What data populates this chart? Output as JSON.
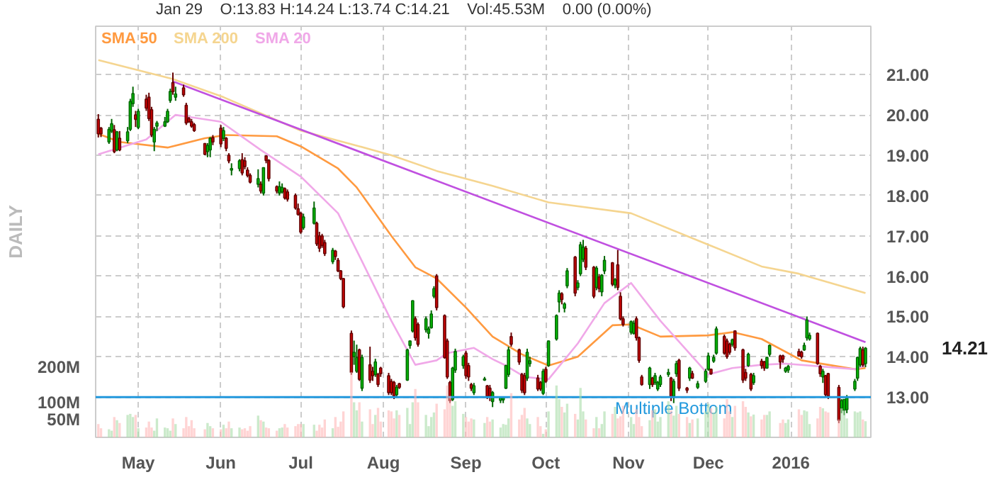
{
  "chart_data": {
    "type": "candlestick",
    "annotations": [
      "DAILY",
      "Jan 29",
      "O:13.83  H:14.24  L:13.74  C:14.21",
      "Vol:45.53M",
      "0.00 (0.00%)",
      "14.21"
    ],
    "x": [
      "2015-04-16",
      "2015-04-17",
      "2015-04-20",
      "2015-04-21",
      "2015-04-22",
      "2015-04-23",
      "2015-04-24",
      "2015-04-27",
      "2015-04-28",
      "2015-04-29",
      "2015-04-30",
      "2015-05-01",
      "2015-05-04",
      "2015-05-05",
      "2015-05-06",
      "2015-05-07",
      "2015-05-08",
      "2015-05-11",
      "2015-05-12",
      "2015-05-13",
      "2015-05-14",
      "2015-05-15",
      "2015-05-18",
      "2015-05-19",
      "2015-05-20",
      "2015-05-21",
      "2015-05-22",
      "2015-05-26",
      "2015-05-27",
      "2015-05-28",
      "2015-05-29",
      "2015-06-01",
      "2015-06-02",
      "2015-06-03",
      "2015-06-04",
      "2015-06-05",
      "2015-06-08",
      "2015-06-09",
      "2015-06-10",
      "2015-06-11",
      "2015-06-12",
      "2015-06-15",
      "2015-06-16",
      "2015-06-17",
      "2015-06-18",
      "2015-06-19",
      "2015-06-22",
      "2015-06-23",
      "2015-06-24",
      "2015-06-25",
      "2015-06-26",
      "2015-06-29",
      "2015-06-30",
      "2015-07-01",
      "2015-07-02",
      "2015-07-06",
      "2015-07-07",
      "2015-07-08",
      "2015-07-09",
      "2015-07-10",
      "2015-07-13",
      "2015-07-14",
      "2015-07-15",
      "2015-07-16",
      "2015-07-17",
      "2015-07-20",
      "2015-07-21",
      "2015-07-22",
      "2015-07-23",
      "2015-07-24",
      "2015-07-27",
      "2015-07-28",
      "2015-07-29",
      "2015-07-30",
      "2015-07-31",
      "2015-08-03",
      "2015-08-04",
      "2015-08-05",
      "2015-08-06",
      "2015-08-07",
      "2015-08-10",
      "2015-08-11",
      "2015-08-12",
      "2015-08-13",
      "2015-08-14",
      "2015-08-17",
      "2015-08-18",
      "2015-08-19",
      "2015-08-20",
      "2015-08-21",
      "2015-08-24",
      "2015-08-25",
      "2015-08-26",
      "2015-08-27",
      "2015-08-28",
      "2015-08-31",
      "2015-09-01",
      "2015-09-02",
      "2015-09-03",
      "2015-09-04",
      "2015-09-08",
      "2015-09-09",
      "2015-09-10",
      "2015-09-11",
      "2015-09-14",
      "2015-09-15",
      "2015-09-16",
      "2015-09-17",
      "2015-09-18",
      "2015-09-21",
      "2015-09-22",
      "2015-09-23",
      "2015-09-24",
      "2015-09-25",
      "2015-09-28",
      "2015-09-29",
      "2015-09-30",
      "2015-10-01",
      "2015-10-02",
      "2015-10-05",
      "2015-10-06",
      "2015-10-07",
      "2015-10-08",
      "2015-10-09",
      "2015-10-12",
      "2015-10-13",
      "2015-10-14",
      "2015-10-15",
      "2015-10-16",
      "2015-10-19",
      "2015-10-20",
      "2015-10-21",
      "2015-10-22",
      "2015-10-23",
      "2015-10-26",
      "2015-10-27",
      "2015-10-28",
      "2015-10-29",
      "2015-10-30",
      "2015-11-02",
      "2015-11-03",
      "2015-11-04",
      "2015-11-05",
      "2015-11-06",
      "2015-11-09",
      "2015-11-10",
      "2015-11-11",
      "2015-11-12",
      "2015-11-13",
      "2015-11-16",
      "2015-11-17",
      "2015-11-18",
      "2015-11-19",
      "2015-11-20",
      "2015-11-23",
      "2015-11-24",
      "2015-11-25",
      "2015-11-27",
      "2015-11-30",
      "2015-12-01",
      "2015-12-02",
      "2015-12-03",
      "2015-12-04",
      "2015-12-07",
      "2015-12-08",
      "2015-12-09",
      "2015-12-10",
      "2015-12-11",
      "2015-12-14",
      "2015-12-15",
      "2015-12-16",
      "2015-12-17",
      "2015-12-18",
      "2015-12-21",
      "2015-12-22",
      "2015-12-23",
      "2015-12-24",
      "2015-12-28",
      "2015-12-29",
      "2015-12-30",
      "2015-12-31",
      "2016-01-04",
      "2016-01-05",
      "2016-01-06",
      "2016-01-07",
      "2016-01-08",
      "2016-01-11",
      "2016-01-12",
      "2016-01-13",
      "2016-01-14",
      "2016-01-15",
      "2016-01-19",
      "2016-01-20",
      "2016-01-21",
      "2016-01-22",
      "2016-01-25",
      "2016-01-26",
      "2016-01-27",
      "2016-01-28",
      "2016-01-29"
    ],
    "ohlc": [
      [
        19.89,
        20.02,
        19.44,
        19.53
      ],
      [
        19.67,
        19.7,
        19.45,
        19.53
      ],
      [
        19.33,
        19.7,
        19.28,
        19.64
      ],
      [
        19.6,
        19.9,
        19.55,
        19.78
      ],
      [
        19.63,
        19.75,
        19.05,
        19.09
      ],
      [
        19.13,
        19.6,
        19.1,
        19.58
      ],
      [
        19.42,
        19.6,
        19.1,
        19.13
      ],
      [
        19.36,
        19.7,
        19.3,
        19.58
      ],
      [
        19.64,
        20.4,
        19.6,
        20.33
      ],
      [
        20.28,
        20.7,
        20.2,
        20.53
      ],
      [
        20.0,
        20.1,
        19.7,
        19.89
      ],
      [
        19.69,
        20.15,
        19.65,
        20.09
      ],
      [
        20.39,
        20.5,
        20.1,
        20.17
      ],
      [
        20.44,
        20.55,
        19.85,
        19.91
      ],
      [
        20.13,
        20.2,
        19.45,
        19.5
      ],
      [
        19.33,
        19.7,
        19.1,
        19.64
      ],
      [
        19.72,
        19.85,
        19.6,
        19.8
      ],
      [
        19.72,
        19.95,
        19.7,
        19.83
      ],
      [
        19.83,
        20.15,
        19.8,
        20.09
      ],
      [
        20.36,
        20.65,
        20.3,
        20.58
      ],
      [
        20.8,
        21.05,
        20.5,
        20.58
      ],
      [
        20.44,
        20.7,
        20.35,
        20.52
      ],
      [
        20.67,
        20.75,
        20.45,
        20.5
      ],
      [
        20.24,
        20.3,
        19.75,
        19.8
      ],
      [
        19.91,
        19.95,
        19.8,
        19.83
      ],
      [
        19.83,
        19.9,
        19.68,
        19.72
      ],
      [
        19.76,
        19.8,
        19.58,
        19.61
      ],
      [
        19.29,
        19.3,
        19.0,
        19.02
      ],
      [
        19.09,
        19.3,
        18.95,
        19.24
      ],
      [
        19.13,
        19.45,
        18.95,
        19.42
      ],
      [
        19.44,
        19.5,
        19.25,
        19.33
      ],
      [
        19.67,
        19.75,
        19.2,
        19.28
      ],
      [
        19.42,
        19.7,
        19.35,
        19.61
      ],
      [
        19.42,
        19.45,
        19.1,
        19.17
      ],
      [
        19.0,
        19.05,
        18.8,
        18.86
      ],
      [
        18.63,
        18.8,
        18.5,
        18.67
      ],
      [
        18.67,
        18.9,
        18.6,
        18.86
      ],
      [
        18.89,
        19.05,
        18.5,
        18.56
      ],
      [
        18.86,
        18.95,
        18.65,
        18.72
      ],
      [
        18.63,
        18.7,
        18.45,
        18.5
      ],
      [
        18.5,
        18.55,
        18.3,
        18.33
      ],
      [
        18.28,
        18.65,
        18.2,
        18.42
      ],
      [
        18.28,
        18.35,
        18.05,
        18.11
      ],
      [
        18.06,
        18.7,
        18.0,
        18.69
      ],
      [
        18.98,
        19.0,
        18.8,
        18.87
      ],
      [
        18.87,
        18.9,
        18.35,
        18.42
      ],
      [
        18.22,
        18.25,
        18.05,
        18.11
      ],
      [
        18.06,
        18.35,
        18.0,
        18.22
      ],
      [
        18.09,
        18.3,
        18.05,
        18.2
      ],
      [
        18.17,
        18.2,
        17.9,
        17.94
      ],
      [
        18.09,
        18.15,
        17.85,
        17.91
      ],
      [
        18.0,
        18.05,
        17.65,
        17.69
      ],
      [
        17.67,
        17.8,
        17.5,
        17.53
      ],
      [
        17.56,
        17.6,
        17.05,
        17.09
      ],
      [
        17.2,
        17.55,
        17.15,
        17.47
      ],
      [
        17.31,
        17.85,
        17.28,
        17.69
      ],
      [
        17.31,
        17.35,
        16.75,
        16.8
      ],
      [
        17.0,
        17.1,
        16.6,
        16.69
      ],
      [
        17.0,
        17.05,
        16.7,
        16.76
      ],
      [
        16.83,
        16.9,
        16.5,
        16.56
      ],
      [
        16.36,
        16.7,
        16.3,
        16.64
      ],
      [
        16.62,
        16.65,
        16.4,
        16.49
      ],
      [
        16.39,
        16.45,
        16.1,
        16.13
      ],
      [
        16.13,
        16.15,
        15.9,
        15.94
      ],
      [
        15.94,
        15.95,
        15.2,
        15.24
      ],
      [
        14.58,
        14.65,
        13.55,
        13.61
      ],
      [
        14.0,
        14.4,
        13.8,
        14.11
      ],
      [
        13.64,
        14.3,
        13.6,
        13.98
      ],
      [
        14.17,
        14.2,
        13.4,
        13.44
      ],
      [
        13.22,
        14.05,
        13.15,
        13.98
      ],
      [
        13.8,
        14.25,
        13.35,
        13.42
      ],
      [
        13.64,
        13.75,
        13.4,
        13.53
      ],
      [
        13.56,
        13.95,
        13.5,
        13.87
      ],
      [
        13.56,
        13.6,
        13.25,
        13.31
      ],
      [
        13.72,
        13.75,
        13.5,
        13.58
      ],
      [
        13.53,
        13.6,
        13.05,
        13.11
      ],
      [
        13.39,
        13.45,
        13.05,
        13.11
      ],
      [
        13.36,
        13.4,
        12.95,
        13.02
      ],
      [
        13.06,
        13.3,
        13.0,
        13.24
      ],
      [
        13.33,
        13.35,
        13.2,
        13.24
      ],
      [
        13.42,
        14.2,
        13.4,
        14.17
      ],
      [
        14.28,
        14.4,
        14.2,
        14.39
      ],
      [
        14.64,
        15.4,
        14.6,
        15.39
      ],
      [
        14.94,
        15.0,
        14.4,
        14.47
      ],
      [
        14.8,
        14.85,
        14.25,
        14.31
      ],
      [
        14.67,
        15.0,
        14.6,
        14.94
      ],
      [
        14.58,
        14.75,
        14.45,
        14.69
      ],
      [
        14.72,
        15.15,
        14.7,
        15.06
      ],
      [
        15.5,
        15.75,
        15.45,
        15.69
      ],
      [
        16.0,
        16.05,
        15.15,
        15.22
      ],
      [
        15.02,
        15.05,
        13.95,
        13.98
      ],
      [
        14.39,
        14.45,
        13.45,
        13.5
      ],
      [
        13.36,
        13.4,
        12.85,
        12.91
      ],
      [
        12.94,
        13.75,
        12.9,
        13.72
      ],
      [
        13.67,
        14.2,
        13.6,
        14.13
      ],
      [
        13.78,
        14.05,
        13.7,
        14.0
      ],
      [
        14.09,
        14.15,
        13.45,
        13.53
      ],
      [
        13.78,
        13.85,
        13.4,
        13.5
      ],
      [
        13.31,
        13.35,
        13.15,
        13.22
      ],
      [
        13.11,
        13.35,
        13.05,
        13.28
      ],
      [
        13.42,
        13.5,
        13.4,
        13.45
      ],
      [
        13.28,
        13.3,
        12.95,
        13.02
      ],
      [
        13.22,
        13.3,
        12.9,
        13.02
      ],
      [
        12.89,
        13.15,
        12.75,
        13.11
      ],
      [
        12.92,
        13.0,
        12.85,
        12.98
      ],
      [
        12.93,
        13.0,
        12.85,
        12.98
      ],
      [
        13.22,
        13.8,
        13.2,
        13.78
      ],
      [
        13.56,
        14.25,
        13.5,
        14.17
      ],
      [
        14.5,
        14.6,
        14.25,
        14.31
      ],
      [
        14.17,
        14.2,
        13.8,
        13.87
      ],
      [
        13.56,
        13.6,
        13.1,
        13.17
      ],
      [
        13.53,
        13.6,
        13.05,
        13.11
      ],
      [
        13.47,
        14.2,
        13.4,
        14.11
      ],
      [
        13.83,
        14.0,
        13.75,
        13.9
      ],
      [
        13.47,
        13.55,
        13.15,
        13.2
      ],
      [
        13.36,
        13.4,
        13.15,
        13.2
      ],
      [
        13.09,
        13.7,
        13.05,
        13.64
      ],
      [
        13.69,
        13.75,
        13.35,
        13.39
      ],
      [
        13.78,
        14.4,
        13.75,
        14.39
      ],
      [
        14.44,
        15.05,
        14.4,
        15.02
      ],
      [
        15.36,
        15.65,
        15.1,
        15.58
      ],
      [
        15.56,
        15.6,
        15.3,
        15.42
      ],
      [
        15.2,
        15.35,
        15.1,
        15.31
      ],
      [
        15.76,
        16.2,
        15.7,
        16.13
      ],
      [
        16.47,
        16.5,
        15.5,
        15.58
      ],
      [
        15.72,
        15.9,
        15.65,
        15.83
      ],
      [
        16.06,
        16.85,
        16.0,
        16.78
      ],
      [
        16.42,
        16.9,
        16.35,
        16.72
      ],
      [
        16.69,
        16.75,
        16.15,
        16.22
      ],
      [
        16.22,
        16.25,
        15.45,
        15.5
      ],
      [
        15.72,
        16.25,
        15.65,
        16.2
      ],
      [
        15.98,
        16.05,
        15.6,
        15.69
      ],
      [
        15.61,
        16.05,
        15.5,
        16.02
      ],
      [
        16.13,
        16.5,
        16.05,
        16.39
      ],
      [
        16.33,
        16.35,
        15.75,
        15.8
      ],
      [
        15.78,
        15.95,
        15.7,
        15.91
      ],
      [
        16.28,
        16.65,
        15.65,
        15.72
      ],
      [
        15.5,
        15.6,
        14.9,
        14.94
      ],
      [
        14.94,
        15.0,
        14.75,
        14.8
      ],
      [
        14.61,
        14.9,
        14.55,
        14.87
      ],
      [
        14.58,
        14.9,
        14.55,
        14.83
      ],
      [
        14.94,
        15.0,
        14.4,
        14.47
      ],
      [
        14.47,
        14.5,
        13.85,
        13.91
      ],
      [
        13.5,
        13.55,
        13.28,
        13.31
      ],
      [
        13.31,
        13.75,
        13.2,
        13.72
      ],
      [
        13.47,
        13.5,
        13.25,
        13.31
      ],
      [
        13.36,
        13.6,
        13.3,
        13.53
      ],
      [
        13.2,
        13.4,
        13.15,
        13.36
      ],
      [
        13.31,
        13.55,
        13.25,
        13.5
      ],
      [
        13.56,
        13.7,
        13.5,
        13.61
      ],
      [
        13.47,
        13.5,
        12.9,
        13.0
      ],
      [
        13.02,
        13.45,
        12.85,
        13.39
      ],
      [
        13.58,
        13.9,
        13.5,
        13.83
      ],
      [
        13.91,
        13.95,
        13.15,
        13.22
      ],
      [
        13.22,
        13.25,
        13.1,
        13.17
      ],
      [
        13.47,
        13.75,
        13.4,
        13.72
      ],
      [
        13.58,
        13.65,
        13.45,
        13.47
      ],
      [
        13.24,
        13.4,
        13.2,
        13.33
      ],
      [
        13.39,
        13.7,
        13.35,
        13.64
      ],
      [
        13.69,
        14.1,
        13.65,
        14.02
      ],
      [
        13.69,
        13.7,
        13.55,
        13.58
      ],
      [
        13.89,
        14.05,
        13.85,
        13.98
      ],
      [
        14.09,
        14.75,
        14.05,
        14.69
      ],
      [
        14.5,
        14.55,
        14.05,
        14.09
      ],
      [
        14.39,
        14.45,
        13.95,
        14.0
      ],
      [
        14.31,
        14.35,
        14.05,
        14.11
      ],
      [
        14.31,
        14.45,
        14.25,
        14.42
      ],
      [
        14.64,
        14.65,
        14.15,
        14.22
      ],
      [
        14.17,
        14.2,
        13.35,
        13.42
      ],
      [
        13.61,
        13.7,
        13.4,
        13.47
      ],
      [
        13.78,
        14.1,
        13.75,
        14.06
      ],
      [
        13.56,
        13.6,
        13.15,
        13.2
      ],
      [
        13.36,
        13.6,
        13.3,
        13.53
      ],
      [
        13.89,
        13.95,
        13.7,
        13.78
      ],
      [
        13.87,
        13.9,
        13.65,
        13.72
      ],
      [
        13.72,
        14.0,
        13.7,
        13.98
      ],
      [
        14.06,
        14.3,
        14.0,
        14.28
      ],
      [
        14.02,
        14.05,
        13.7,
        13.87
      ],
      [
        14.02,
        14.05,
        13.85,
        13.94
      ],
      [
        13.64,
        13.75,
        13.6,
        13.72
      ],
      [
        13.67,
        13.8,
        13.6,
        13.76
      ],
      [
        14.13,
        14.2,
        14.0,
        14.02
      ],
      [
        14.11,
        14.15,
        13.95,
        14.0
      ],
      [
        14.17,
        14.35,
        14.15,
        14.28
      ],
      [
        14.47,
        15.0,
        14.4,
        14.91
      ],
      [
        14.44,
        14.6,
        14.4,
        14.53
      ],
      [
        14.58,
        14.6,
        13.8,
        13.83
      ],
      [
        13.76,
        13.8,
        13.5,
        13.58
      ],
      [
        13.5,
        13.7,
        13.35,
        13.64
      ],
      [
        13.53,
        13.55,
        13.0,
        13.06
      ],
      [
        13.58,
        13.6,
        12.95,
        13.02
      ],
      [
        13.24,
        13.3,
        12.35,
        12.42
      ],
      [
        12.72,
        12.95,
        12.6,
        12.91
      ],
      [
        12.67,
        12.95,
        12.55,
        12.94
      ],
      [
        12.69,
        13.05,
        12.6,
        12.98
      ],
      [
        13.2,
        13.45,
        13.15,
        13.39
      ],
      [
        13.47,
        14.0,
        13.4,
        13.98
      ],
      [
        13.8,
        14.25,
        13.75,
        14.2
      ],
      [
        14.17,
        14.25,
        13.75,
        13.8
      ],
      [
        13.83,
        14.24,
        13.74,
        14.21
      ]
    ],
    "series": [
      {
        "type": "bar",
        "axis": "y2",
        "values": [
          38,
          26,
          23,
          19,
          58,
          49,
          41,
          64,
          67,
          58,
          64,
          26,
          28,
          45,
          28,
          19,
          54,
          28,
          26,
          19,
          54,
          38,
          26,
          58,
          32,
          49,
          26,
          23,
          41,
          32,
          26,
          23,
          36,
          26,
          45,
          26,
          28,
          23,
          26,
          19,
          32,
          62,
          49,
          45,
          28,
          26,
          19,
          26,
          28,
          38,
          28,
          32,
          38,
          38,
          38,
          36,
          19,
          36,
          28,
          51,
          26,
          58,
          30,
          45,
          74,
          186,
          100,
          77,
          100,
          45,
          80,
          38,
          64,
          84,
          45,
          77,
          74,
          54,
          77,
          64,
          84,
          38,
          100,
          138,
          100,
          64,
          32,
          58,
          71,
          96,
          80,
          148,
          118,
          90,
          103,
          67,
          58,
          45,
          54,
          51,
          41,
          58,
          45,
          51,
          28,
          38,
          36,
          54,
          126,
          51,
          64,
          84,
          54,
          38,
          58,
          32,
          10,
          23,
          74,
          148,
          109,
          87,
          71,
          96,
          67,
          51,
          141,
          74,
          51,
          26,
          58,
          26,
          38,
          74,
          67,
          87,
          54,
          60,
          90,
          58,
          38,
          80,
          58,
          32,
          49,
          77,
          80,
          45,
          58,
          103,
          77,
          62,
          90,
          67,
          58,
          41,
          51,
          54,
          74,
          96,
          83,
          71,
          87,
          54,
          109,
          74,
          58,
          90,
          103,
          87,
          71,
          60,
          65,
          51,
          64,
          64,
          74,
          41,
          51,
          41,
          51,
          80,
          64,
          77,
          74,
          38,
          54,
          87,
          83,
          74,
          71,
          51,
          83,
          77,
          54,
          74,
          71,
          74,
          51,
          46
        ],
        "colors": [
          "#ffb8b8",
          "#ffb8b8",
          "#a8dca8",
          "#a8dca8",
          "#ffb8b8",
          "#a8dca8",
          "#ffb8b8",
          "#a8dca8",
          "#a8dca8",
          "#a8dca8",
          "#ffb8b8",
          "#a8dca8",
          "#ffb8b8",
          "#ffb8b8",
          "#ffb8b8",
          "#a8dca8",
          "#a8dca8",
          "#a8dca8",
          "#a8dca8",
          "#a8dca8",
          "#ffb8b8",
          "#a8dca8",
          "#ffb8b8",
          "#ffb8b8",
          "#ffb8b8",
          "#ffb8b8",
          "#ffb8b8",
          "#ffb8b8",
          "#a8dca8",
          "#a8dca8",
          "#ffb8b8",
          "#ffb8b8",
          "#a8dca8",
          "#ffb8b8",
          "#ffb8b8",
          "#a8dca8",
          "#a8dca8",
          "#ffb8b8",
          "#ffb8b8",
          "#ffb8b8",
          "#ffb8b8",
          "#a8dca8",
          "#ffb8b8",
          "#a8dca8",
          "#ffb8b8",
          "#ffb8b8",
          "#ffb8b8",
          "#a8dca8",
          "#a8dca8",
          "#ffb8b8",
          "#ffb8b8",
          "#ffb8b8",
          "#ffb8b8",
          "#ffb8b8",
          "#a8dca8",
          "#a8dca8",
          "#ffb8b8",
          "#ffb8b8",
          "#ffb8b8",
          "#ffb8b8",
          "#a8dca8",
          "#ffb8b8",
          "#ffb8b8",
          "#ffb8b8",
          "#ffb8b8",
          "#ffb8b8",
          "#a8dca8",
          "#a8dca8",
          "#ffb8b8",
          "#a8dca8",
          "#ffb8b8",
          "#ffb8b8",
          "#a8dca8",
          "#ffb8b8",
          "#ffb8b8",
          "#ffb8b8",
          "#ffb8b8",
          "#ffb8b8",
          "#a8dca8",
          "#ffb8b8",
          "#a8dca8",
          "#a8dca8",
          "#a8dca8",
          "#ffb8b8",
          "#ffb8b8",
          "#a8dca8",
          "#a8dca8",
          "#a8dca8",
          "#a8dca8",
          "#ffb8b8",
          "#ffb8b8",
          "#ffb8b8",
          "#ffb8b8",
          "#a8dca8",
          "#a8dca8",
          "#a8dca8",
          "#ffb8b8",
          "#ffb8b8",
          "#ffb8b8",
          "#a8dca8",
          "#a8dca8",
          "#ffb8b8",
          "#ffb8b8",
          "#a8dca8",
          "#a8dca8",
          "#a8dca8",
          "#a8dca8",
          "#a8dca8",
          "#ffb8b8",
          "#ffb8b8",
          "#ffb8b8",
          "#ffb8b8",
          "#a8dca8",
          "#a8dca8",
          "#ffb8b8",
          "#ffb8b8",
          "#a8dca8",
          "#ffb8b8",
          "#a8dca8",
          "#a8dca8",
          "#a8dca8",
          "#ffb8b8",
          "#a8dca8",
          "#a8dca8",
          "#ffb8b8",
          "#a8dca8",
          "#a8dca8",
          "#a8dca8",
          "#ffb8b8",
          "#ffb8b8",
          "#a8dca8",
          "#ffb8b8",
          "#a8dca8",
          "#a8dca8",
          "#ffb8b8",
          "#a8dca8",
          "#ffb8b8",
          "#ffb8b8",
          "#ffb8b8",
          "#a8dca8",
          "#a8dca8",
          "#ffb8b8",
          "#ffb8b8",
          "#ffb8b8",
          "#a8dca8",
          "#ffb8b8",
          "#a8dca8",
          "#a8dca8",
          "#a8dca8",
          "#a8dca8",
          "#ffb8b8",
          "#a8dca8",
          "#a8dca8",
          "#ffb8b8",
          "#ffb8b8",
          "#a8dca8",
          "#ffb8b8",
          "#a8dca8",
          "#a8dca8",
          "#a8dca8",
          "#ffb8b8",
          "#a8dca8",
          "#a8dca8",
          "#ffb8b8",
          "#ffb8b8",
          "#ffb8b8",
          "#a8dca8",
          "#ffb8b8",
          "#ffb8b8",
          "#ffb8b8",
          "#a8dca8",
          "#ffb8b8",
          "#a8dca8",
          "#ffb8b8",
          "#ffb8b8",
          "#a8dca8",
          "#a8dca8",
          "#ffb8b8",
          "#ffb8b8",
          "#a8dca8",
          "#a8dca8",
          "#ffb8b8",
          "#ffb8b8",
          "#a8dca8",
          "#a8dca8",
          "#a8dca8",
          "#ffb8b8",
          "#ffb8b8",
          "#a8dca8",
          "#ffb8b8",
          "#ffb8b8",
          "#ffb8b8",
          "#a8dca8",
          "#a8dca8",
          "#a8dca8",
          "#a8dca8",
          "#a8dca8",
          "#a8dca8",
          "#ffb8b8",
          "#a8dca8"
        ]
      },
      {
        "type": "line",
        "name": "SMA 50",
        "color": "#ff9a40",
        "x": [
          "2015-04-16",
          "2015-04-24",
          "2015-05-12",
          "2015-05-26",
          "2015-06-03",
          "2015-06-22",
          "2015-07-01",
          "2015-07-15",
          "2015-07-22",
          "2015-08-04",
          "2015-08-13",
          "2015-08-21",
          "2015-09-01",
          "2015-09-11",
          "2015-09-22",
          "2015-10-02",
          "2015-10-13",
          "2015-10-26",
          "2015-11-02",
          "2015-11-13",
          "2015-12-01",
          "2015-12-10",
          "2015-12-21",
          "2016-01-05",
          "2016-01-25",
          "2016-01-29"
        ],
        "values": [
          19.53,
          19.33,
          19.19,
          19.42,
          19.5,
          19.47,
          19.22,
          18.67,
          18.2,
          17.0,
          16.22,
          15.94,
          15.22,
          14.5,
          14.06,
          13.78,
          14.0,
          14.78,
          14.8,
          14.5,
          14.53,
          14.61,
          14.44,
          13.91,
          13.69,
          13.72
        ]
      },
      {
        "type": "line",
        "name": "SMA 200",
        "color": "#f5d590",
        "x": [
          "2015-04-16",
          "2015-05-14",
          "2015-06-02",
          "2015-07-01",
          "2015-07-23",
          "2015-08-04",
          "2015-08-21",
          "2015-09-11",
          "2015-10-02",
          "2015-11-02",
          "2015-12-01",
          "2015-12-21",
          "2016-01-04",
          "2016-01-29"
        ],
        "values": [
          21.36,
          20.89,
          20.44,
          19.61,
          19.22,
          19.0,
          18.61,
          18.24,
          17.83,
          17.56,
          16.78,
          16.24,
          16.06,
          15.58
        ]
      },
      {
        "type": "line",
        "name": "SMA 20",
        "color": "#f0a8e8",
        "x": [
          "2015-04-16",
          "2015-05-04",
          "2015-05-15",
          "2015-06-01",
          "2015-06-16",
          "2015-07-01",
          "2015-07-15",
          "2015-07-23",
          "2015-08-04",
          "2015-08-13",
          "2015-08-21",
          "2015-08-25",
          "2015-09-04",
          "2015-09-11",
          "2015-09-16",
          "2015-09-23",
          "2015-10-02",
          "2015-10-13",
          "2015-10-23",
          "2015-11-02",
          "2015-11-13",
          "2015-12-01",
          "2015-12-10",
          "2015-12-21",
          "2015-12-30",
          "2016-01-25",
          "2016-01-29"
        ],
        "values": [
          19.02,
          19.39,
          20.0,
          19.83,
          19.13,
          18.47,
          17.56,
          16.5,
          14.89,
          13.8,
          13.91,
          14.09,
          14.22,
          13.94,
          13.78,
          13.5,
          13.44,
          14.33,
          15.33,
          15.83,
          14.89,
          13.56,
          13.72,
          13.8,
          13.83,
          13.69,
          13.78
        ]
      },
      {
        "type": "line",
        "color": "#c050e0",
        "x": [
          "2015-05-14",
          "2016-01-29"
        ],
        "values": [
          20.83,
          14.36
        ]
      }
    ],
    "ref_lines": [
      {
        "axis": "y",
        "value": 13.0,
        "label": "Multiple Bottom",
        "color": "#2299dd"
      }
    ],
    "xlim": [
      "2015-04-15",
      "2016-01-31"
    ],
    "xticks": [
      {
        "value": "2015-05-01",
        "label": "May"
      },
      {
        "value": "2015-06-01",
        "label": "Jun"
      },
      {
        "value": "2015-07-01",
        "label": "Jul"
      },
      {
        "value": "2015-08-01",
        "label": "Aug"
      },
      {
        "value": "2015-09-01",
        "label": "Sep"
      },
      {
        "value": "2015-10-01",
        "label": "Oct"
      },
      {
        "value": "2015-11-01",
        "label": "Nov"
      },
      {
        "value": "2015-12-01",
        "label": "Dec"
      },
      {
        "value": "2016-01-01",
        "label": "2016"
      }
    ],
    "ylim": [
      12.0,
      22.2
    ],
    "yticks": [
      {
        "value": 13,
        "label": "13.00"
      },
      {
        "value": 14,
        "label": "14.00"
      },
      {
        "value": 15,
        "label": "15.00"
      },
      {
        "value": 16,
        "label": "16.00"
      },
      {
        "value": 17,
        "label": "17.00"
      },
      {
        "value": 18,
        "label": "18.00"
      },
      {
        "value": 19,
        "label": "19.00"
      },
      {
        "value": 20,
        "label": "20.00"
      },
      {
        "value": 21,
        "label": "21.00"
      }
    ],
    "y2lim": [
      0,
      1173
    ],
    "y2ticks": [
      {
        "value": 50,
        "label": "50M"
      },
      {
        "value": 100,
        "label": "100M"
      },
      {
        "value": 200,
        "label": "200M"
      }
    ],
    "grid": true,
    "legend": "top left"
  }
}
